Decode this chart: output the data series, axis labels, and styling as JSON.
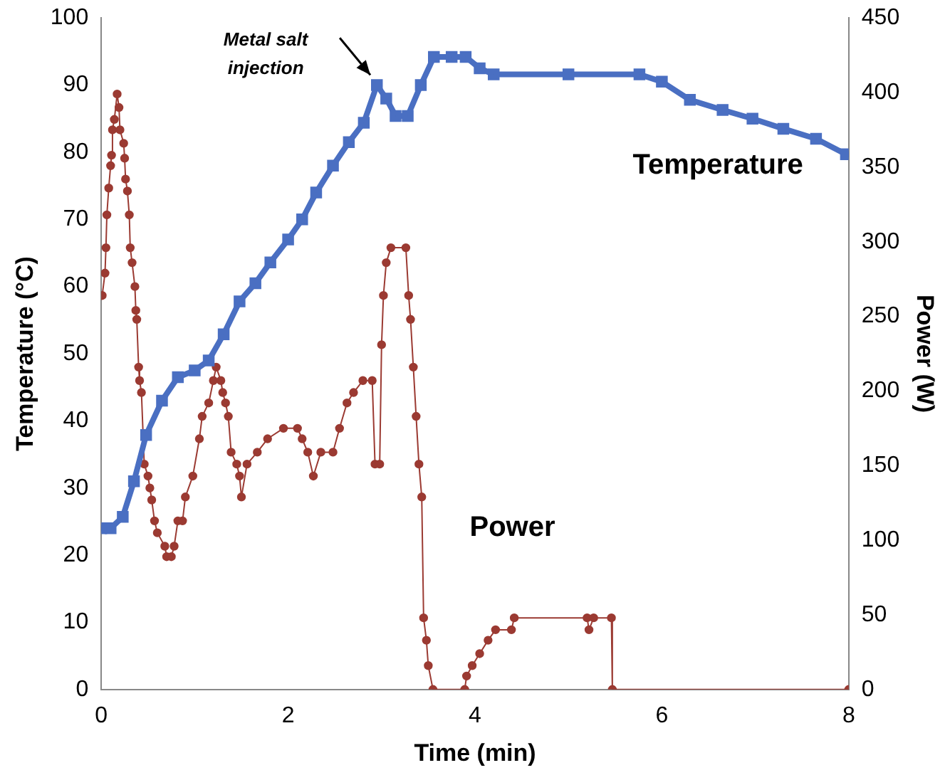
{
  "chart_data": {
    "type": "line",
    "xlabel": "Time (min)",
    "ylabel": "Temperature (°C)",
    "y2label": "Power (W)",
    "xlim": [
      0,
      8
    ],
    "xticks": [
      0,
      2,
      4,
      6,
      8
    ],
    "ylim": [
      0,
      100
    ],
    "yticks": [
      0,
      10,
      20,
      30,
      40,
      50,
      60,
      70,
      80,
      90,
      100
    ],
    "y2lim": [
      0,
      450
    ],
    "y2ticks": [
      0,
      50,
      100,
      150,
      200,
      250,
      300,
      350,
      400,
      450
    ],
    "grid": false,
    "legend": false,
    "annotations": [
      "Metal salt injection"
    ],
    "series": [
      {
        "name": "Temperature",
        "color": "#4a6fc2",
        "marker": "square",
        "x": [
          0,
          0.1,
          0.23,
          0.35,
          0.48,
          0.65,
          0.82,
          1.0,
          1.15,
          1.31,
          1.48,
          1.65,
          1.81,
          2.0,
          2.15,
          2.3,
          2.48,
          2.65,
          2.81,
          2.95,
          3.05,
          3.15,
          3.28,
          3.42,
          3.56,
          3.75,
          3.9,
          4.05,
          4.2,
          5.0,
          5.76,
          6.0,
          6.3,
          6.65,
          6.97,
          7.3,
          7.65,
          7.97
        ],
        "values": [
          24,
          24,
          25.7,
          31,
          37.9,
          43,
          46.5,
          47.5,
          49,
          52.9,
          57.8,
          60.5,
          63.6,
          67,
          70,
          74,
          78,
          81.5,
          84.4,
          90,
          88,
          85.4,
          85.4,
          90,
          94.2,
          94.2,
          94.2,
          92.5,
          91.6,
          91.6,
          91.6,
          90.5,
          87.8,
          86.3,
          85,
          83.5,
          82,
          79.7
        ]
      },
      {
        "name": "Power",
        "color": "#9b3a32",
        "marker": "circle",
        "axis": "y2",
        "x": [
          0.01,
          0.04,
          0.05,
          0.06,
          0.08,
          0.1,
          0.11,
          0.12,
          0.14,
          0.17,
          0.19,
          0.2,
          0.24,
          0.25,
          0.26,
          0.28,
          0.3,
          0.31,
          0.33,
          0.36,
          0.37,
          0.38,
          0.4,
          0.41,
          0.43,
          0.46,
          0.5,
          0.52,
          0.54,
          0.57,
          0.6,
          0.68,
          0.7,
          0.75,
          0.78,
          0.82,
          0.87,
          0.9,
          0.98,
          1.05,
          1.08,
          1.15,
          1.2,
          1.23,
          1.28,
          1.3,
          1.33,
          1.36,
          1.39,
          1.45,
          1.48,
          1.5,
          1.56,
          1.67,
          1.78,
          1.95,
          2.1,
          2.15,
          2.21,
          2.27,
          2.35,
          2.48,
          2.55,
          2.63,
          2.7,
          2.8,
          2.9,
          2.93,
          2.98,
          3.0,
          3.02,
          3.05,
          3.1,
          3.26,
          3.29,
          3.31,
          3.34,
          3.37,
          3.4,
          3.43,
          3.45,
          3.48,
          3.5,
          3.55,
          3.89,
          3.91,
          3.97,
          4.05,
          4.14,
          4.22,
          4.39,
          4.42,
          5.2,
          5.22,
          5.27,
          5.46,
          5.47,
          8
        ],
        "values": [
          264,
          279,
          296,
          318,
          336,
          351,
          358,
          375,
          382,
          399,
          390,
          375,
          366,
          356,
          342,
          334,
          318,
          296,
          286,
          270,
          254,
          248,
          216,
          207,
          199,
          151,
          143,
          135,
          127,
          113,
          105,
          96,
          89,
          89,
          96,
          113,
          113,
          129,
          143,
          168,
          183,
          192,
          207,
          216,
          207,
          199,
          192,
          183,
          159,
          151,
          143,
          129,
          151,
          159,
          168,
          175,
          175,
          168,
          159,
          143,
          159,
          159,
          175,
          192,
          199,
          207,
          207,
          151,
          151,
          231,
          264,
          286,
          296,
          296,
          264,
          248,
          216,
          183,
          151,
          129,
          48,
          33,
          16,
          0,
          0,
          9,
          16,
          24,
          33,
          40,
          40,
          48,
          48,
          40,
          48,
          48,
          0,
          0
        ]
      }
    ]
  }
}
